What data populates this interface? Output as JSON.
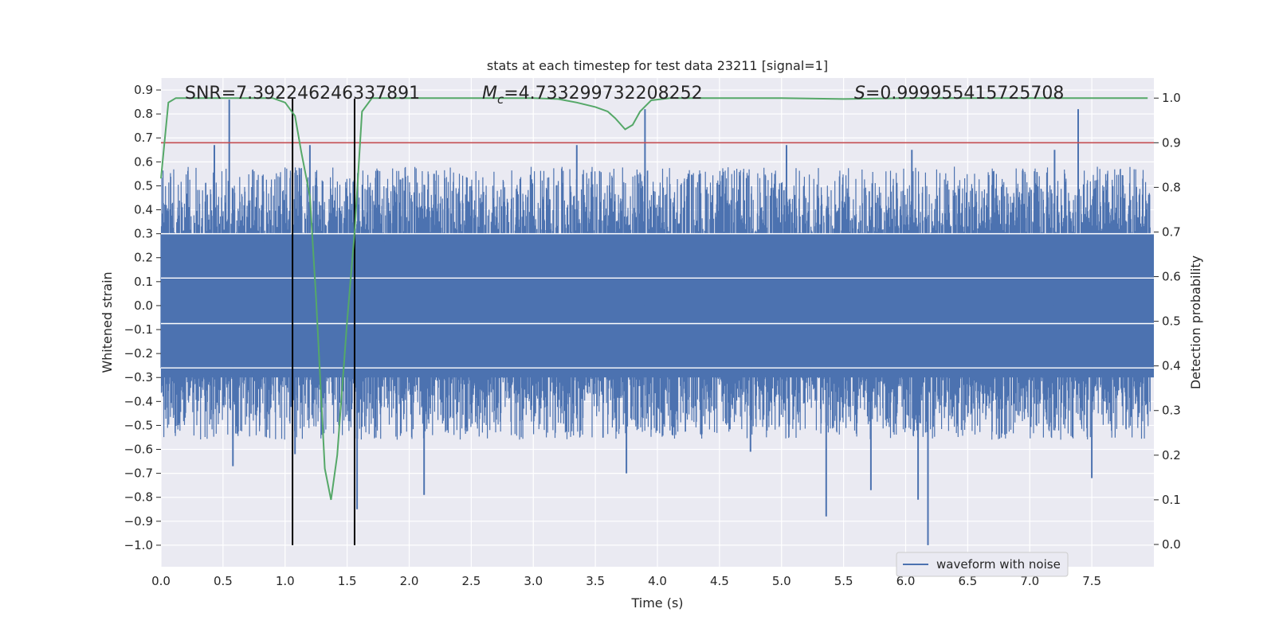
{
  "chart_data": {
    "type": "line",
    "title": "stats at each timestep for test data 23211 [signal=1]",
    "xlabel": "Time (s)",
    "ylabel_left": "Whitened strain",
    "ylabel_right": "Detection probability",
    "xlim": [
      0.0,
      8.0
    ],
    "ylim_left": [
      -1.09,
      0.95
    ],
    "ylim_right": [
      -0.05,
      1.045
    ],
    "x_ticks": [
      "0.0",
      "0.5",
      "1.0",
      "1.5",
      "2.0",
      "2.5",
      "3.0",
      "3.5",
      "4.0",
      "4.5",
      "5.0",
      "5.5",
      "6.0",
      "6.5",
      "7.0",
      "7.5"
    ],
    "y_left_ticks": [
      "0.9",
      "0.8",
      "0.7",
      "0.6",
      "0.5",
      "0.4",
      "0.3",
      "0.2",
      "0.1",
      "0.0",
      "−0.1",
      "−0.2",
      "−0.3",
      "−0.4",
      "−0.5",
      "−0.6",
      "−0.7",
      "−0.8",
      "−0.9",
      "−1.0"
    ],
    "y_right_ticks": [
      "1.0",
      "0.9",
      "0.8",
      "0.7",
      "0.6",
      "0.5",
      "0.4",
      "0.3",
      "0.2",
      "0.1",
      "0.0"
    ],
    "grid": true,
    "legend": {
      "position": "lower-right",
      "entries": [
        "waveform with noise"
      ]
    },
    "annotations": {
      "snr": "SNR=7.392246246337891",
      "mc_symbol": "M",
      "mc_sub": "c",
      "mc_value": "=4.733299732208252",
      "s_symbol": "S",
      "s_value": "=0.999955415725708"
    },
    "series": [
      {
        "name": "waveform with noise",
        "axis": "left",
        "color": "#4c72b0",
        "envelope_note": "noise band",
        "spikes_up": [
          [
            0.55,
            0.86
          ],
          [
            3.9,
            0.82
          ],
          [
            7.39,
            0.82
          ],
          [
            2.2,
            0.55
          ],
          [
            5.04,
            0.67
          ],
          [
            6.05,
            0.65
          ],
          [
            7.2,
            0.65
          ],
          [
            0.43,
            0.67
          ],
          [
            3.35,
            0.67
          ],
          [
            1.2,
            0.67
          ]
        ],
        "spikes_down": [
          [
            6.18,
            -1.0
          ],
          [
            5.36,
            -0.88
          ],
          [
            1.58,
            -0.85
          ],
          [
            2.12,
            -0.79
          ],
          [
            6.1,
            -0.81
          ],
          [
            7.5,
            -0.72
          ],
          [
            0.58,
            -0.67
          ],
          [
            3.75,
            -0.7
          ],
          [
            5.72,
            -0.77
          ],
          [
            4.75,
            -0.61
          ],
          [
            1.08,
            -0.62
          ]
        ]
      },
      {
        "name": "",
        "axis": "right",
        "color": "#55a868",
        "x": [
          0.0,
          0.06,
          0.12,
          0.3,
          0.6,
          0.9,
          1.0,
          1.08,
          1.13,
          1.2,
          1.25,
          1.32,
          1.37,
          1.42,
          1.5,
          1.56,
          1.62,
          1.7,
          2.0,
          2.5,
          3.0,
          3.2,
          3.35,
          3.5,
          3.6,
          3.66,
          3.74,
          3.8,
          3.86,
          3.95,
          4.1,
          4.5,
          5.0,
          5.5,
          6.0,
          6.5,
          7.0,
          7.5,
          7.95
        ],
        "y": [
          0.82,
          0.99,
          1.0,
          1.0,
          1.0,
          1.0,
          0.99,
          0.96,
          0.88,
          0.78,
          0.55,
          0.17,
          0.1,
          0.2,
          0.5,
          0.7,
          0.97,
          1.0,
          1.0,
          1.0,
          1.0,
          0.998,
          0.99,
          0.98,
          0.97,
          0.955,
          0.93,
          0.94,
          0.97,
          0.995,
          1.0,
          1.0,
          1.0,
          0.998,
          1.0,
          1.0,
          1.0,
          1.0,
          1.0
        ]
      },
      {
        "name": "",
        "axis": "right",
        "color": "#c44e52",
        "type": "threshold",
        "y": 0.9
      }
    ],
    "vertical_lines_x": [
      1.06,
      1.56
    ]
  }
}
